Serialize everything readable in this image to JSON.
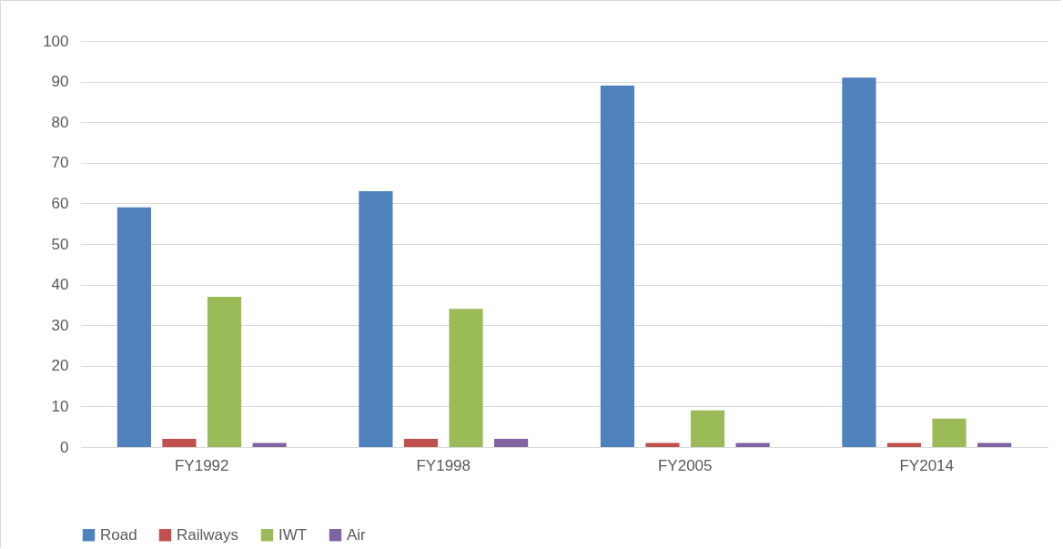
{
  "chart_data": {
    "type": "bar",
    "categories": [
      "FY1992",
      "FY1998",
      "FY2005",
      "FY2014"
    ],
    "series": [
      {
        "name": "Road",
        "color": "#4f81bd",
        "values": [
          59,
          63,
          89,
          91
        ]
      },
      {
        "name": "Railways",
        "color": "#c0504d",
        "values": [
          2,
          2,
          1,
          1
        ]
      },
      {
        "name": "IWT",
        "color": "#9bbb59",
        "values": [
          37,
          34,
          9,
          7
        ]
      },
      {
        "name": "Air",
        "color": "#8064a2",
        "values": [
          1,
          2,
          1,
          1
        ]
      }
    ],
    "ylim": [
      0,
      100
    ],
    "yticks": [
      0,
      10,
      20,
      30,
      40,
      50,
      60,
      70,
      80,
      90,
      100
    ],
    "grid": "y",
    "legend": "bottom"
  }
}
